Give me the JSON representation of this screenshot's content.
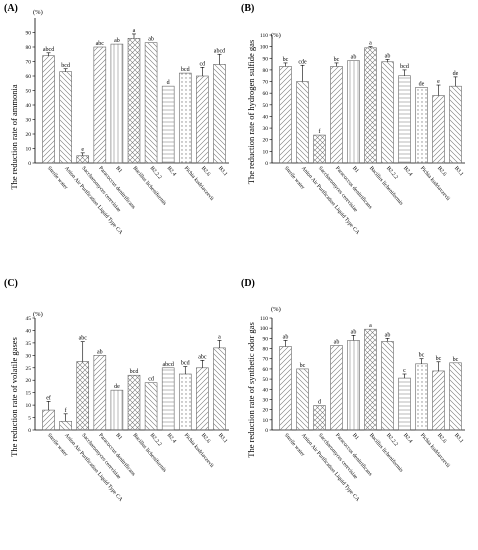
{
  "chart_data": [
    {
      "panel": "(A)",
      "type": "bar",
      "unit": "(%)",
      "ylabel": "The reduction rate of ammonia",
      "ylim": [
        0,
        100
      ],
      "yticks": [
        0,
        10,
        20,
        30,
        40,
        50,
        60,
        70,
        80,
        90
      ],
      "categories": [
        "Sterile water",
        "Anion Air Purification Liquid Type CA",
        "Saccharomyces cerevisiae",
        "Paracoccus denitrificans",
        "B1",
        "Bacillus licheniformis",
        "B2.2.2",
        "B2.4",
        "Pichia kudriavzevii",
        "B2.6",
        "B3.1"
      ],
      "values": [
        74,
        63,
        5,
        80,
        82,
        86,
        83,
        53,
        62,
        60,
        68
      ],
      "errors": [
        2,
        2,
        2,
        0,
        0,
        3,
        0,
        0,
        0,
        6,
        7
      ],
      "letters": [
        "abcd",
        "bcd",
        "e",
        "abc",
        "ab",
        "a",
        "ab",
        "d",
        "bcd",
        "cd",
        "abcd"
      ]
    },
    {
      "panel": "(B)",
      "type": "bar",
      "unit": "(%)",
      "ylabel": "The reduction rate of hydrogen sulfide gas",
      "ylim": [
        0,
        110
      ],
      "yticks": [
        0,
        10,
        20,
        30,
        40,
        50,
        60,
        70,
        80,
        90,
        100,
        110
      ],
      "categories": [
        "Sterile water",
        "Anion Air Purification Liquid Type CA",
        "Saccharomyces cerevisiae",
        "Paracoccus denitrificans",
        "B1",
        "Bacillus licheniformis",
        "B2.2.2",
        "B2.4",
        "Pichia kudriavzevii",
        "B2.6",
        "B3.1"
      ],
      "values": [
        83,
        70,
        24,
        83,
        88,
        99,
        87,
        75,
        65,
        58,
        66
      ],
      "errors": [
        3,
        14,
        0,
        3,
        0,
        1,
        2,
        5,
        0,
        9,
        8
      ],
      "letters": [
        "bc",
        "cde",
        "f",
        "bc",
        "ab",
        "a",
        "ab",
        "bcd",
        "de",
        "e",
        "de"
      ]
    },
    {
      "panel": "(C)",
      "type": "bar",
      "unit": "(%)",
      "ylabel": "The reduction rate of volatile gases",
      "ylim": [
        0,
        45
      ],
      "yticks": [
        0,
        5,
        10,
        15,
        20,
        25,
        30,
        35,
        40,
        45
      ],
      "categories": [
        "Sterile water",
        "Anion Air Purification Liquid Type CA",
        "Saccharomyces cerevisiae",
        "Paracoccus denitrificans",
        "B1",
        "Bacillus licheniformis",
        "B2.2.2",
        "B2.4",
        "Pichia kudriavzevii",
        "B2.6",
        "B3.1"
      ],
      "values": [
        8,
        3.5,
        27.5,
        30,
        16,
        22,
        19,
        25,
        22.5,
        25,
        33
      ],
      "errors": [
        3.5,
        3,
        8,
        0,
        0,
        0,
        0,
        0,
        3,
        3,
        3
      ],
      "letters": [
        "ef",
        "f",
        "abc",
        "ab",
        "de",
        "bcd",
        "cd",
        "abcd",
        "bcd",
        "abc",
        "a"
      ]
    },
    {
      "panel": "(D)",
      "type": "bar",
      "unit": "(%)",
      "ylabel": "The reduction rate of synthetic odor gas",
      "ylim": [
        0,
        110
      ],
      "yticks": [
        0,
        10,
        20,
        30,
        40,
        50,
        60,
        70,
        80,
        90,
        100,
        110
      ],
      "categories": [
        "Sterile water",
        "Anion Air Purification Liquid Type CA",
        "Saccharomyces cerevisiae",
        "Paracoccus denitrificans",
        "B1",
        "Bacillus licheniformis",
        "B2.2.2",
        "B2.4",
        "Pichia kudriavzevii",
        "B2.6",
        "B3.1"
      ],
      "values": [
        82,
        60,
        24,
        83,
        88,
        99,
        87,
        51,
        65,
        58,
        66
      ],
      "errors": [
        6,
        0,
        0,
        0,
        5,
        0,
        3,
        4,
        5,
        9,
        0
      ],
      "letters": [
        "ab",
        "bc",
        "d",
        "ab",
        "ab",
        "a",
        "ab",
        "c",
        "bc",
        "bc",
        "bc"
      ]
    }
  ]
}
